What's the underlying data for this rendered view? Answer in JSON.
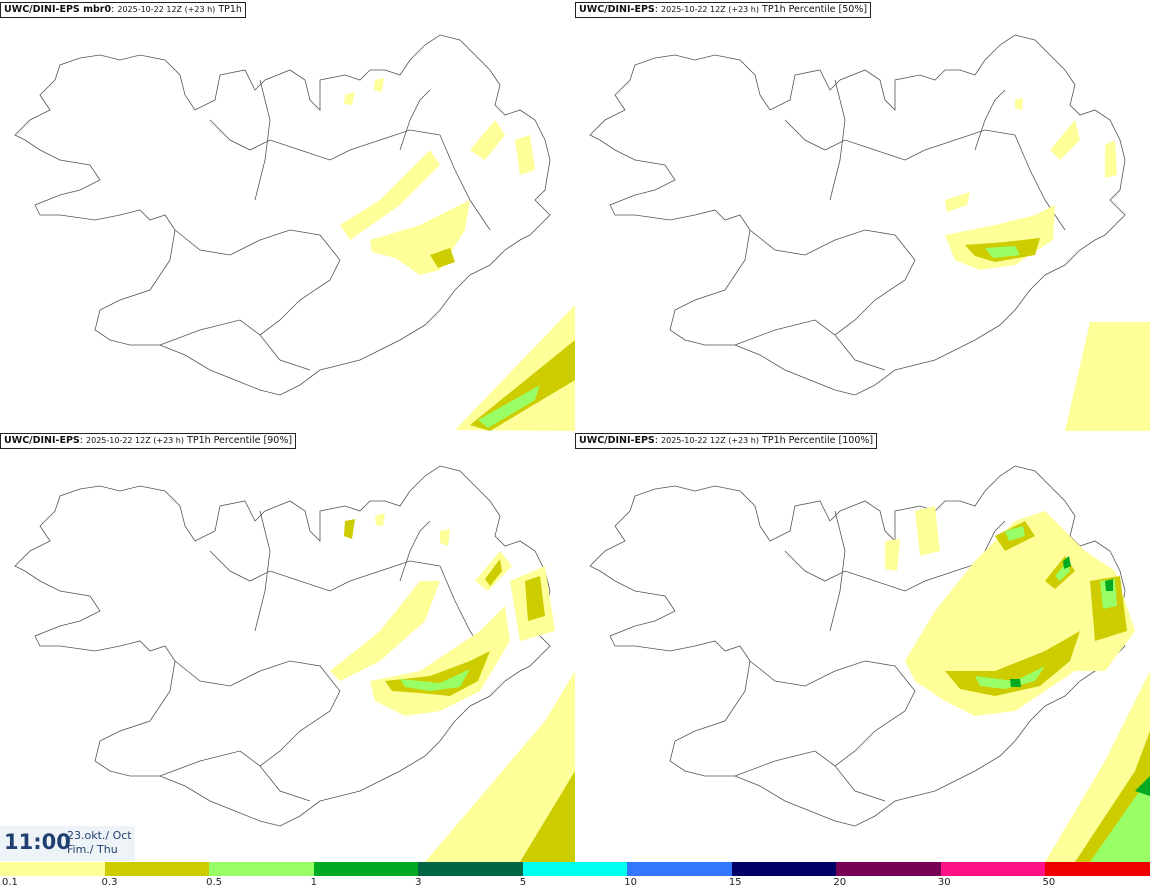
{
  "panels": [
    {
      "model": "UWC/DINI-EPS mbr0",
      "run": "2025-10-22 12Z (+23 h)",
      "field": "TP1h"
    },
    {
      "model": "UWC/DINI-EPS",
      "run": "2025-10-22 12Z (+23 h)",
      "field": "TP1h Percentile [50%]"
    },
    {
      "model": "UWC/DINI-EPS",
      "run": "2025-10-22 12Z (+23 h)",
      "field": "TP1h Percentile [90%]"
    },
    {
      "model": "UWC/DINI-EPS",
      "run": "2025-10-22 12Z (+23 h)",
      "field": "TP1h Percentile [100%]"
    }
  ],
  "valid_time": {
    "time": "11:00",
    "date": "23.okt./ Oct",
    "weekday": "Fim./ Thu"
  },
  "legend": [
    {
      "label": "0.1",
      "color": "#ffff99"
    },
    {
      "label": "0.3",
      "color": "#cccc00"
    },
    {
      "label": "0.5",
      "color": "#99ff66"
    },
    {
      "label": "1",
      "color": "#00aa22"
    },
    {
      "label": "3",
      "color": "#006644"
    },
    {
      "label": "5",
      "color": "#00ffee"
    },
    {
      "label": "10",
      "color": "#3377ff"
    },
    {
      "label": "15",
      "color": "#000066"
    },
    {
      "label": "20",
      "color": "#770055"
    },
    {
      "label": "30",
      "color": "#ff1188"
    },
    {
      "label": "50",
      "color": "#ee0000"
    }
  ]
}
